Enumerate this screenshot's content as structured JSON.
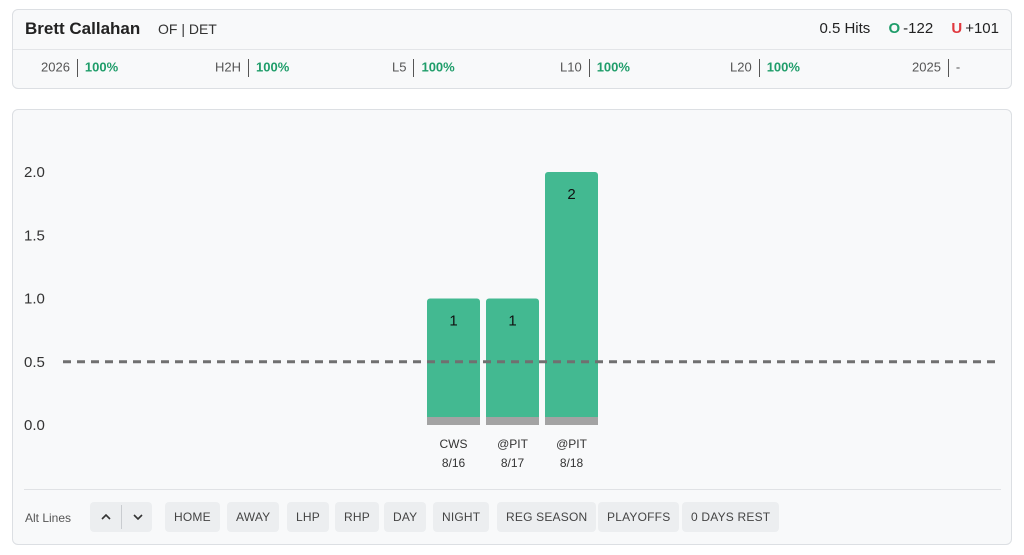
{
  "header": {
    "player_name": "Brett Callahan",
    "player_meta": "OF | DET",
    "line_label": "0.5 Hits",
    "over_mark": "O",
    "over_odds": "-122",
    "under_mark": "U",
    "under_odds": "+101"
  },
  "splits": [
    {
      "label": "2026",
      "value": "100%"
    },
    {
      "label": "H2H",
      "value": "100%"
    },
    {
      "label": "L5",
      "value": "100%"
    },
    {
      "label": "L10",
      "value": "100%"
    },
    {
      "label": "L20",
      "value": "100%"
    },
    {
      "label": "2025",
      "value": "-"
    }
  ],
  "chart_data": {
    "type": "bar",
    "categories": [
      "CWS 8/16",
      "@PIT 8/17",
      "@PIT 8/18"
    ],
    "opponents": [
      "CWS",
      "@PIT",
      "@PIT"
    ],
    "dates": [
      "8/16",
      "8/17",
      "8/18"
    ],
    "values": [
      1,
      1,
      2
    ],
    "line": 0.5,
    "ylim": [
      0,
      2
    ],
    "yticks": [
      "2.0",
      "1.5",
      "1.0",
      "0.5",
      "0.0"
    ],
    "bar_color": "#43b991",
    "base_color": "#a3a3a3",
    "line_color": "#707070"
  },
  "filters": {
    "alt_lines_label": "Alt Lines",
    "up_icon": "chevron-up-icon",
    "down_icon": "chevron-down-icon",
    "chips": [
      "HOME",
      "AWAY",
      "LHP",
      "RHP",
      "DAY",
      "NIGHT",
      "REG SEASON",
      "PLAYOFFS",
      "0 DAYS REST"
    ]
  }
}
